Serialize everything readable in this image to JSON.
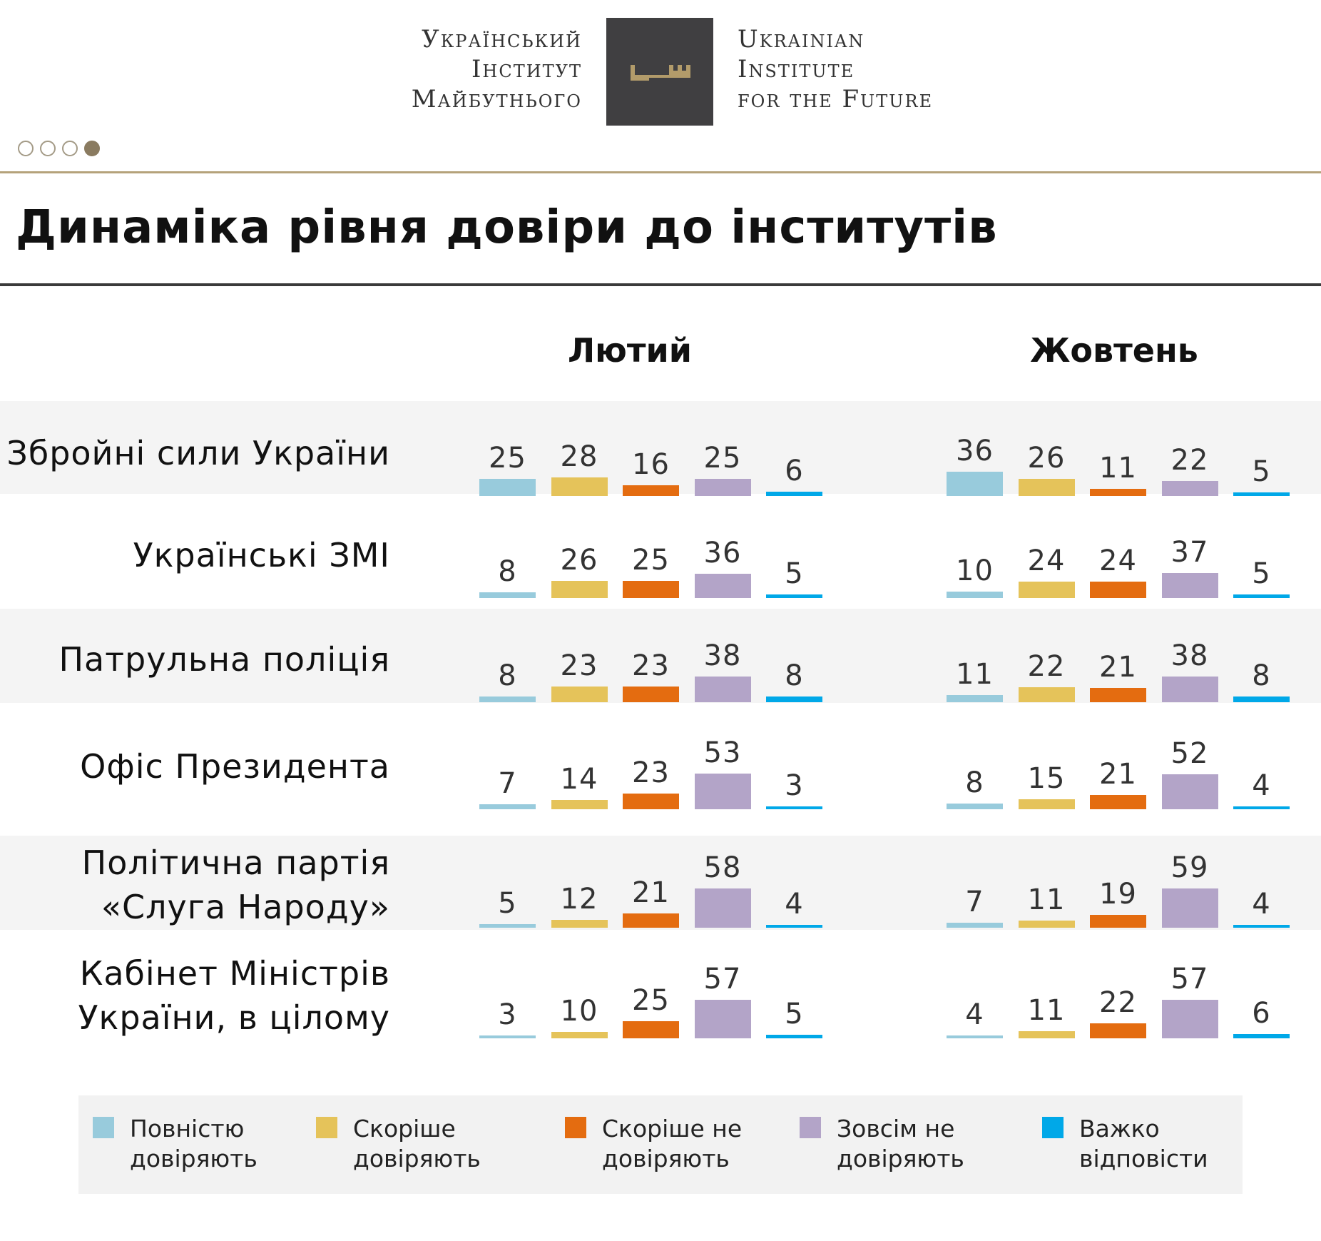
{
  "header": {
    "logo_left": [
      "Український",
      "Інститут",
      "Майбутнього"
    ],
    "logo_right": [
      "Ukrainian",
      "Institute",
      "for the Future"
    ],
    "logo_icon": "key-icon",
    "pager": {
      "total": 4,
      "active": 4
    }
  },
  "title": "Динаміка рівня довіри до інститутів",
  "colors": {
    "full_trust": "#98cbdc",
    "rather_trust": "#e5c35a",
    "rather_distrust": "#e46c10",
    "no_trust": "#b3a4c8",
    "hard_to_say": "#00a8e8",
    "band": "#f4f4f4"
  },
  "chart_data": {
    "type": "bar",
    "title": "Динаміка рівня довіри до інститутів",
    "periods": [
      "Лютий",
      "Жовтень"
    ],
    "series_names": [
      "Повністю довіряють",
      "Скоріше довіряють",
      "Скоріше не довіряють",
      "Зовсім не довіряють",
      "Важко відповісти"
    ],
    "legend": [
      [
        "Повністю",
        "довіряють"
      ],
      [
        "Скоріше",
        "довіряють"
      ],
      [
        "Скоріше не",
        "довіряють"
      ],
      [
        "Зовсім не",
        "довіряють"
      ],
      [
        "Важко",
        "відповісти"
      ]
    ],
    "rows": [
      {
        "label": [
          "Збройні сили України"
        ],
        "values": [
          [
            25,
            28,
            16,
            25,
            6
          ],
          [
            36,
            26,
            11,
            22,
            5
          ]
        ]
      },
      {
        "label": [
          "Українські ЗМІ"
        ],
        "values": [
          [
            8,
            26,
            25,
            36,
            5
          ],
          [
            10,
            24,
            24,
            37,
            5
          ]
        ]
      },
      {
        "label": [
          "Патрульна поліція"
        ],
        "values": [
          [
            8,
            23,
            23,
            38,
            8
          ],
          [
            11,
            22,
            21,
            38,
            8
          ]
        ]
      },
      {
        "label": [
          "Офіс Президента"
        ],
        "values": [
          [
            7,
            14,
            23,
            53,
            3
          ],
          [
            8,
            15,
            21,
            52,
            4
          ]
        ]
      },
      {
        "label": [
          "Політична партія",
          "«Слуга Народу»"
        ],
        "values": [
          [
            5,
            12,
            21,
            58,
            4
          ],
          [
            7,
            11,
            19,
            59,
            4
          ]
        ]
      },
      {
        "label": [
          "Кабінет Міністрів",
          "України, в цілому"
        ],
        "values": [
          [
            3,
            10,
            25,
            57,
            5
          ],
          [
            4,
            11,
            22,
            57,
            6
          ]
        ]
      }
    ],
    "legend_position": "bottom"
  }
}
